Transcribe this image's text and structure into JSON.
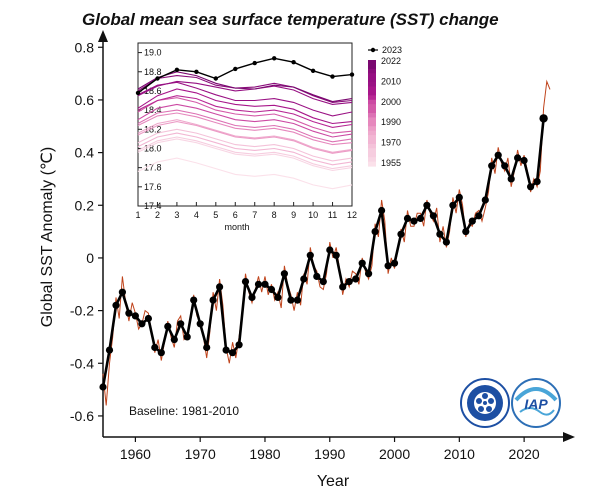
{
  "chart_data": [
    {
      "type": "line",
      "title": "Global mean sea surface temperature (SST) change",
      "xlabel": "Year",
      "ylabel": "Global SST Anomaly (℃)",
      "xlim": [
        1955,
        2026
      ],
      "ylim": [
        -0.68,
        0.82
      ],
      "x_ticks": [
        "1960",
        "1970",
        "1980",
        "1990",
        "2000",
        "2010",
        "2020"
      ],
      "y_ticks": [
        "-0.6",
        "-0.4",
        "-0.2",
        "0",
        "0.2",
        "0.4",
        "0.6",
        "0.8"
      ],
      "annotation": "Baseline: 1981-2010",
      "series": [
        {
          "style": "annual",
          "color": "#000000",
          "x": [
            1955,
            1956,
            1957,
            1958,
            1959,
            1960,
            1961,
            1962,
            1963,
            1964,
            1965,
            1966,
            1967,
            1968,
            1969,
            1970,
            1971,
            1972,
            1973,
            1974,
            1975,
            1976,
            1977,
            1978,
            1979,
            1980,
            1981,
            1982,
            1983,
            1984,
            1985,
            1986,
            1987,
            1988,
            1989,
            1990,
            1991,
            1992,
            1993,
            1994,
            1995,
            1996,
            1997,
            1998,
            1999,
            2000,
            2001,
            2002,
            2003,
            2004,
            2005,
            2006,
            2007,
            2008,
            2009,
            2010,
            2011,
            2012,
            2013,
            2014,
            2015,
            2016,
            2017,
            2018,
            2019,
            2020,
            2021,
            2022,
            2023
          ],
          "values": [
            -0.49,
            -0.35,
            -0.18,
            -0.13,
            -0.21,
            -0.22,
            -0.25,
            -0.23,
            -0.34,
            -0.36,
            -0.26,
            -0.31,
            -0.25,
            -0.3,
            -0.16,
            -0.25,
            -0.34,
            -0.16,
            -0.11,
            -0.35,
            -0.36,
            -0.33,
            -0.09,
            -0.15,
            -0.1,
            -0.1,
            -0.12,
            -0.15,
            -0.06,
            -0.16,
            -0.16,
            -0.08,
            0.01,
            -0.07,
            -0.09,
            0.03,
            0.01,
            -0.11,
            -0.09,
            -0.08,
            -0.02,
            -0.06,
            0.1,
            0.18,
            -0.03,
            -0.02,
            0.09,
            0.15,
            0.14,
            0.15,
            0.2,
            0.16,
            0.09,
            0.06,
            0.2,
            0.23,
            0.1,
            0.14,
            0.16,
            0.22,
            0.35,
            0.39,
            0.35,
            0.3,
            0.38,
            0.37,
            0.27,
            0.29,
            0.53
          ]
        },
        {
          "style": "monthly",
          "color": "#c0441c",
          "x": [
            1955.0,
            1955.5,
            1956.0,
            1956.5,
            1957.0,
            1957.5,
            1958.0,
            1958.5,
            1959.0,
            1959.5,
            1960.0,
            1960.5,
            1961.0,
            1961.5,
            1962.0,
            1962.5,
            1963.0,
            1963.5,
            1964.0,
            1964.5,
            1965.0,
            1965.5,
            1966.0,
            1966.5,
            1967.0,
            1967.5,
            1968.0,
            1968.5,
            1969.0,
            1969.5,
            1970.0,
            1970.5,
            1971.0,
            1971.5,
            1972.0,
            1972.5,
            1973.0,
            1973.5,
            1974.0,
            1974.5,
            1975.0,
            1975.5,
            1976.0,
            1976.5,
            1977.0,
            1977.5,
            1978.0,
            1978.5,
            1979.0,
            1979.5,
            1980.0,
            1980.5,
            1981.0,
            1981.5,
            1982.0,
            1982.5,
            1983.0,
            1983.5,
            1984.0,
            1984.5,
            1985.0,
            1985.5,
            1986.0,
            1986.5,
            1987.0,
            1987.5,
            1988.0,
            1988.5,
            1989.0,
            1989.5,
            1990.0,
            1990.5,
            1991.0,
            1991.5,
            1992.0,
            1992.5,
            1993.0,
            1993.5,
            1994.0,
            1994.5,
            1995.0,
            1995.5,
            1996.0,
            1996.5,
            1997.0,
            1997.5,
            1998.0,
            1998.5,
            1999.0,
            1999.5,
            2000.0,
            2000.5,
            2001.0,
            2001.5,
            2002.0,
            2002.5,
            2003.0,
            2003.5,
            2004.0,
            2004.5,
            2005.0,
            2005.5,
            2006.0,
            2006.5,
            2007.0,
            2007.5,
            2008.0,
            2008.5,
            2009.0,
            2009.5,
            2010.0,
            2010.5,
            2011.0,
            2011.5,
            2012.0,
            2012.5,
            2013.0,
            2013.5,
            2014.0,
            2014.5,
            2015.0,
            2015.5,
            2016.0,
            2016.5,
            2017.0,
            2017.5,
            2018.0,
            2018.5,
            2019.0,
            2019.5,
            2020.0,
            2020.5,
            2021.0,
            2021.5,
            2022.0,
            2022.5,
            2023.0,
            2023.5,
            2024.0
          ],
          "values": [
            -0.44,
            -0.56,
            -0.4,
            -0.3,
            -0.15,
            -0.23,
            -0.07,
            -0.17,
            -0.24,
            -0.17,
            -0.21,
            -0.27,
            -0.25,
            -0.2,
            -0.21,
            -0.28,
            -0.36,
            -0.31,
            -0.39,
            -0.32,
            -0.24,
            -0.3,
            -0.34,
            -0.24,
            -0.22,
            -0.31,
            -0.3,
            -0.24,
            -0.14,
            -0.22,
            -0.24,
            -0.3,
            -0.38,
            -0.28,
            -0.13,
            -0.2,
            -0.08,
            -0.18,
            -0.34,
            -0.4,
            -0.32,
            -0.38,
            -0.3,
            -0.2,
            -0.06,
            -0.13,
            -0.17,
            -0.12,
            -0.07,
            -0.13,
            -0.07,
            -0.14,
            -0.1,
            -0.16,
            -0.13,
            -0.19,
            -0.03,
            -0.1,
            -0.14,
            -0.2,
            -0.13,
            -0.18,
            -0.06,
            -0.1,
            0.04,
            -0.03,
            -0.05,
            -0.11,
            -0.12,
            -0.06,
            0.06,
            0.0,
            0.04,
            -0.04,
            -0.14,
            -0.08,
            -0.11,
            -0.05,
            -0.06,
            -0.1,
            0.0,
            -0.05,
            -0.08,
            -0.03,
            0.13,
            0.08,
            0.22,
            0.14,
            -0.06,
            0.0,
            -0.04,
            0.03,
            0.11,
            0.06,
            0.18,
            0.12,
            0.12,
            0.17,
            0.17,
            0.12,
            0.22,
            0.17,
            0.14,
            0.19,
            0.06,
            0.12,
            0.04,
            0.1,
            0.23,
            0.17,
            0.26,
            0.2,
            0.08,
            0.13,
            0.12,
            0.17,
            0.18,
            0.14,
            0.19,
            0.25,
            0.38,
            0.32,
            0.42,
            0.36,
            0.33,
            0.38,
            0.27,
            0.33,
            0.41,
            0.35,
            0.39,
            0.33,
            0.25,
            0.3,
            0.27,
            0.33,
            0.57,
            0.67,
            0.64
          ]
        }
      ]
    },
    {
      "type": "line",
      "title": "",
      "xlabel": "month",
      "ylabel": "",
      "xlim": [
        1,
        12
      ],
      "ylim": [
        17.4,
        19.1
      ],
      "x_ticks": [
        "1",
        "2",
        "3",
        "4",
        "5",
        "6",
        "7",
        "8",
        "9",
        "10",
        "11",
        "12"
      ],
      "y_ticks": [
        "17.4",
        "17.6",
        "17.8",
        "18.0",
        "18.2",
        "18.4",
        "18.6",
        "18.8",
        "19.0"
      ],
      "legend": {
        "position": "right",
        "marker_label": "2023",
        "colorbar_labels": [
          "2022",
          "2010",
          "2000",
          "1990",
          "1970",
          "1955"
        ]
      },
      "series": [
        {
          "name": "2023",
          "color": "#000000",
          "values": [
            18.58,
            18.73,
            18.82,
            18.8,
            18.73,
            18.83,
            18.89,
            18.94,
            18.9,
            18.81,
            18.75,
            18.77
          ]
        },
        {
          "name": "2022",
          "color": "#7a0870",
          "values": [
            18.62,
            18.74,
            18.8,
            18.76,
            18.68,
            18.63,
            18.62,
            18.66,
            18.64,
            18.56,
            18.49,
            18.52
          ]
        },
        {
          "name": "2016",
          "color": "#8a0c7a",
          "values": [
            18.6,
            18.73,
            18.76,
            18.74,
            18.66,
            18.63,
            18.64,
            18.68,
            18.64,
            18.55,
            18.48,
            18.5
          ]
        },
        {
          "name": "2015",
          "color": "#960f82",
          "values": [
            18.55,
            18.65,
            18.7,
            18.68,
            18.64,
            18.6,
            18.62,
            18.65,
            18.61,
            18.52,
            18.46,
            18.48
          ]
        },
        {
          "name": "2020",
          "color": "#9a1284",
          "values": [
            18.56,
            18.66,
            18.69,
            18.63,
            18.56,
            18.5,
            18.5,
            18.52,
            18.48,
            18.4,
            18.34,
            18.38
          ]
        },
        {
          "name": "2010",
          "color": "#a8168a",
          "values": [
            18.42,
            18.55,
            18.62,
            18.58,
            18.5,
            18.46,
            18.44,
            18.45,
            18.41,
            18.32,
            18.26,
            18.28
          ]
        },
        {
          "name": "2005",
          "color": "#b82894",
          "values": [
            18.4,
            18.5,
            18.55,
            18.52,
            18.44,
            18.4,
            18.38,
            18.4,
            18.36,
            18.28,
            18.22,
            18.25
          ]
        },
        {
          "name": "2000",
          "color": "#cc4aa3",
          "values": [
            18.3,
            18.42,
            18.46,
            18.42,
            18.36,
            18.3,
            18.28,
            18.3,
            18.26,
            18.18,
            18.12,
            18.15
          ]
        },
        {
          "name": "1998",
          "color": "#d45aa8",
          "values": [
            18.38,
            18.5,
            18.53,
            18.48,
            18.4,
            18.36,
            18.34,
            18.36,
            18.3,
            18.22,
            18.16,
            18.18
          ]
        },
        {
          "name": "1995",
          "color": "#dc72b4",
          "values": [
            18.26,
            18.37,
            18.4,
            18.36,
            18.3,
            18.24,
            18.22,
            18.24,
            18.2,
            18.12,
            18.07,
            18.1
          ]
        },
        {
          "name": "1990",
          "color": "#e688bd",
          "values": [
            18.24,
            18.34,
            18.37,
            18.33,
            18.27,
            18.21,
            18.19,
            18.21,
            18.17,
            18.09,
            18.04,
            18.06
          ]
        },
        {
          "name": "1985",
          "color": "#ec9cc6",
          "values": [
            18.14,
            18.24,
            18.28,
            18.24,
            18.18,
            18.12,
            18.1,
            18.12,
            18.08,
            18.0,
            17.95,
            17.98
          ]
        },
        {
          "name": "1980",
          "color": "#efaacd",
          "values": [
            18.16,
            18.26,
            18.3,
            18.25,
            18.19,
            18.13,
            18.11,
            18.13,
            18.09,
            18.01,
            17.96,
            17.99
          ]
        },
        {
          "name": "1975",
          "color": "#f2b6d3",
          "values": [
            18.02,
            18.12,
            18.16,
            18.12,
            18.06,
            18.0,
            17.98,
            18.0,
            17.96,
            17.88,
            17.83,
            17.86
          ]
        },
        {
          "name": "1970",
          "color": "#f4c2d9",
          "values": [
            18.06,
            18.16,
            18.2,
            18.16,
            18.1,
            18.04,
            18.02,
            18.04,
            18.0,
            17.92,
            17.87,
            17.9
          ]
        },
        {
          "name": "1965",
          "color": "#f6cddf",
          "values": [
            17.98,
            18.08,
            18.12,
            18.08,
            18.02,
            17.96,
            17.94,
            17.96,
            17.92,
            17.84,
            17.79,
            17.82
          ]
        },
        {
          "name": "1960",
          "color": "#f8d6e4",
          "values": [
            17.96,
            18.06,
            18.1,
            18.06,
            18.0,
            17.94,
            17.92,
            17.94,
            17.9,
            17.82,
            17.77,
            17.8
          ]
        },
        {
          "name": "1955",
          "color": "#fbe1ea",
          "values": [
            17.76,
            17.86,
            17.9,
            17.85,
            17.79,
            17.73,
            17.71,
            17.73,
            17.69,
            17.62,
            17.58,
            17.62
          ]
        }
      ]
    }
  ]
}
